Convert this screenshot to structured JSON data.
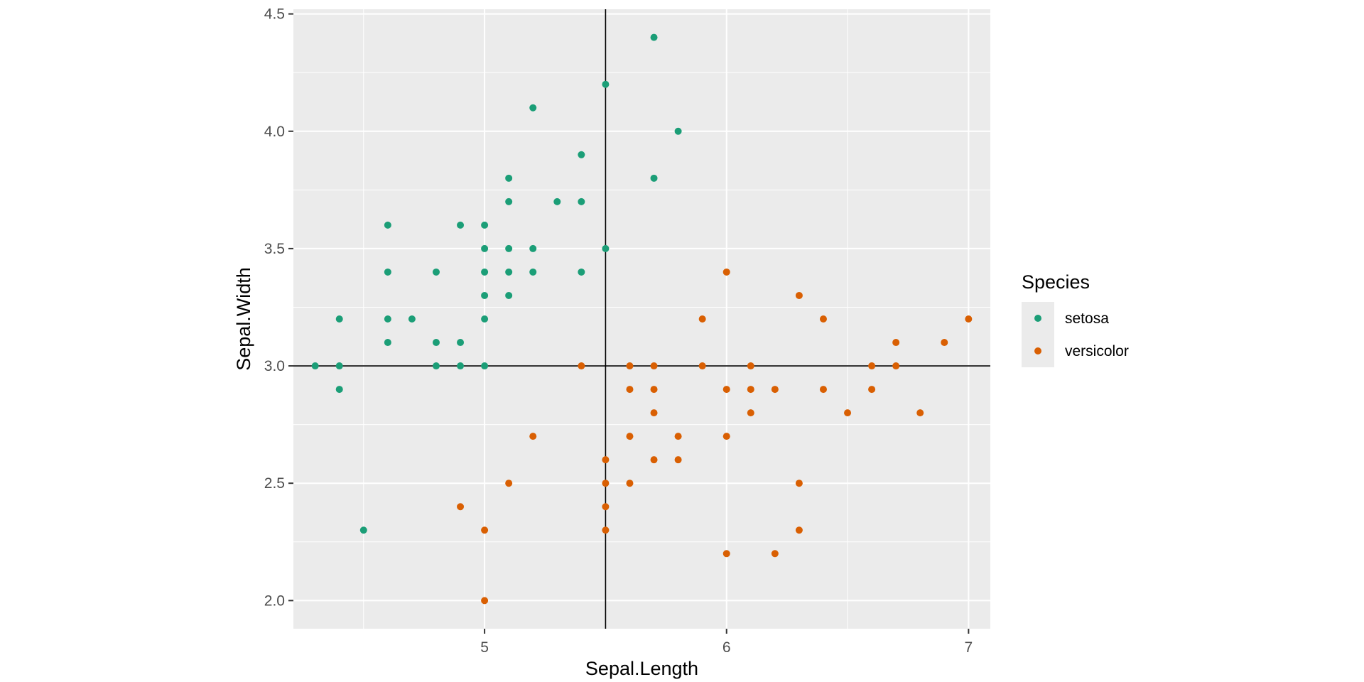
{
  "chart_data": {
    "type": "scatter",
    "title": "",
    "xlabel": "Sepal.Length",
    "ylabel": "Sepal.Width",
    "xlim": [
      4.21,
      7.09
    ],
    "ylim": [
      1.88,
      4.52
    ],
    "x_ticks": [
      5,
      6,
      7
    ],
    "x_tick_labels": [
      "5",
      "6",
      "7"
    ],
    "y_ticks": [
      2.0,
      2.5,
      3.0,
      3.5,
      4.0,
      4.5
    ],
    "y_tick_labels": [
      "2.0",
      "2.5",
      "3.0",
      "3.5",
      "4.0",
      "4.5"
    ],
    "grid": true,
    "reference_lines": {
      "vline_x": 5.5,
      "hline_y": 3.0
    },
    "legend": {
      "title": "Species",
      "position": "right"
    },
    "colors": {
      "setosa": "#1b9e77",
      "versicolor": "#d95f02",
      "panel": "#ebebeb",
      "grid": "#ffffff"
    },
    "series": [
      {
        "name": "setosa",
        "x": [
          5.7,
          5.5,
          5.2,
          5.8,
          5.4,
          5.1,
          5.7,
          5.1,
          5.3,
          5.4,
          4.6,
          4.9,
          5.0,
          5.0,
          5.1,
          5.2,
          5.5,
          4.6,
          4.8,
          5.0,
          5.1,
          5.2,
          5.4,
          5.0,
          5.1,
          5.0,
          4.4,
          4.6,
          4.7,
          4.6,
          4.8,
          4.9,
          4.3,
          4.4,
          4.8,
          4.9,
          5.0,
          4.4,
          4.5
        ],
        "y": [
          4.4,
          4.2,
          4.1,
          4.0,
          3.9,
          3.8,
          3.8,
          3.7,
          3.7,
          3.7,
          3.6,
          3.6,
          3.6,
          3.5,
          3.5,
          3.5,
          3.5,
          3.4,
          3.4,
          3.4,
          3.4,
          3.4,
          3.4,
          3.3,
          3.3,
          3.2,
          3.2,
          3.2,
          3.2,
          3.1,
          3.1,
          3.1,
          3.0,
          3.0,
          3.0,
          3.0,
          3.0,
          2.9,
          2.3
        ]
      },
      {
        "name": "versicolor",
        "x": [
          6.0,
          6.3,
          5.9,
          6.4,
          7.0,
          6.7,
          6.9,
          5.4,
          5.6,
          5.7,
          5.9,
          6.1,
          6.6,
          6.7,
          5.6,
          5.7,
          6.0,
          6.1,
          6.2,
          6.4,
          6.6,
          5.7,
          6.1,
          6.5,
          6.8,
          5.2,
          5.6,
          5.8,
          6.0,
          5.5,
          5.7,
          5.8,
          5.1,
          5.5,
          5.6,
          6.3,
          4.9,
          5.5,
          5.0,
          5.5,
          6.3,
          6.0,
          6.2,
          5.0
        ],
        "y": [
          3.4,
          3.3,
          3.2,
          3.2,
          3.2,
          3.1,
          3.1,
          3.0,
          3.0,
          3.0,
          3.0,
          3.0,
          3.0,
          3.0,
          2.9,
          2.9,
          2.9,
          2.9,
          2.9,
          2.9,
          2.9,
          2.8,
          2.8,
          2.8,
          2.8,
          2.7,
          2.7,
          2.7,
          2.7,
          2.6,
          2.6,
          2.6,
          2.5,
          2.5,
          2.5,
          2.5,
          2.4,
          2.4,
          2.3,
          2.3,
          2.3,
          2.2,
          2.2,
          2.0
        ]
      }
    ]
  }
}
